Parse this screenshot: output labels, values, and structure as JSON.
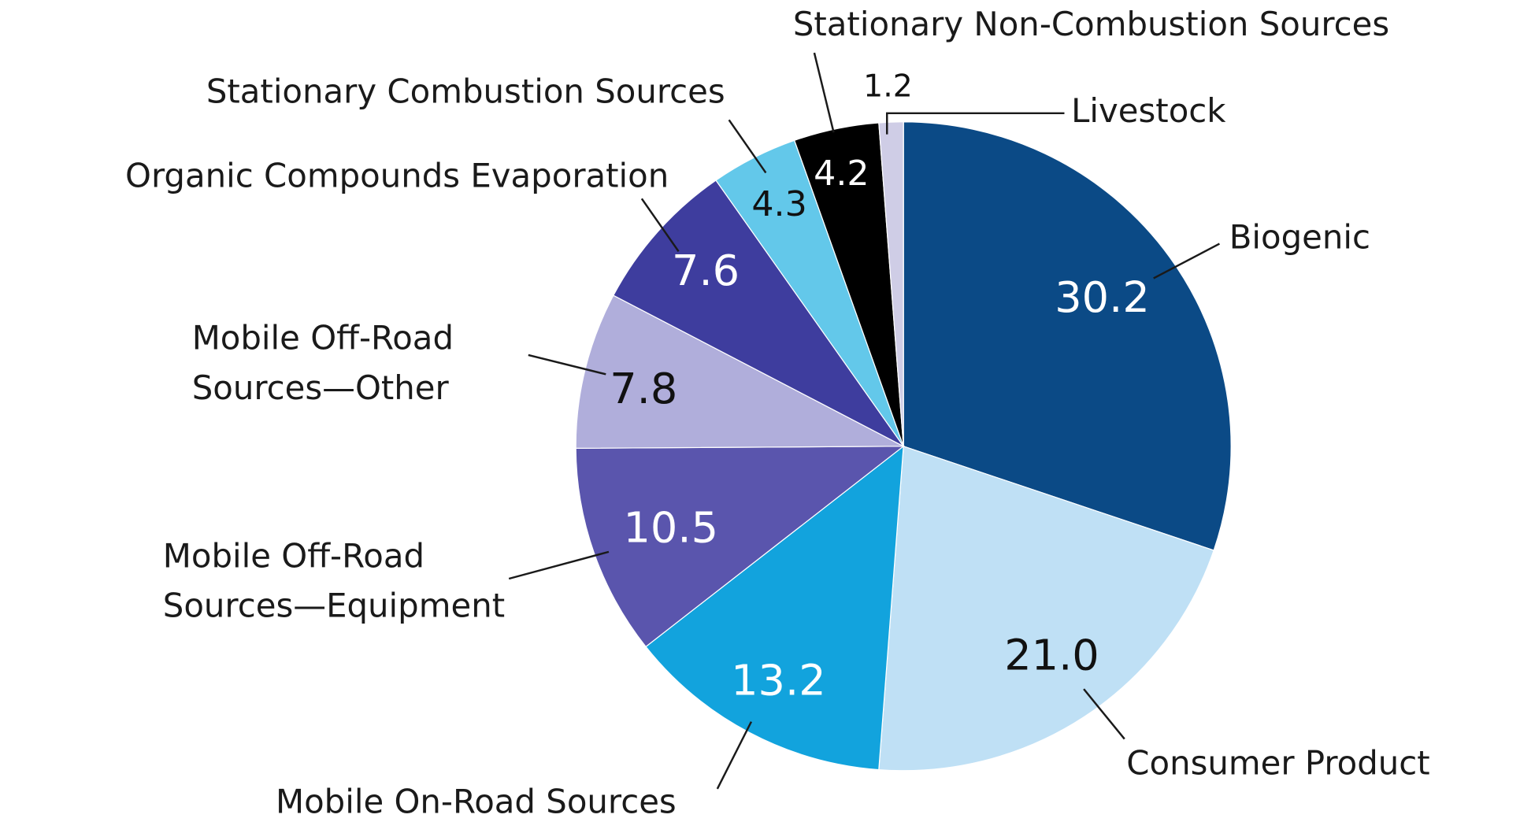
{
  "chart_data": {
    "type": "pie",
    "categories": [
      "Biogenic",
      "Consumer Product",
      "Mobile On-Road Sources",
      "Mobile Off-Road Sources—Equipment",
      "Mobile Off-Road Sources—Other",
      "Organic Compounds Evaporation",
      "Stationary Combustion Sources",
      "Stationary Non-Combustion Sources",
      "Livestock"
    ],
    "values": [
      30.2,
      21.0,
      13.2,
      10.5,
      7.8,
      7.6,
      4.3,
      4.2,
      1.2
    ],
    "value_labels": [
      "30.2",
      "21.0",
      "13.2",
      "10.5",
      "7.8",
      "7.6",
      "4.3",
      "4.2",
      "1.2"
    ],
    "colors": [
      "#0b4a86",
      "#bfe0f5",
      "#12a3dd",
      "#5a55ad",
      "#b0aedb",
      "#3e3d9e",
      "#63c8ea",
      "#000000",
      "#cfcde6"
    ]
  }
}
